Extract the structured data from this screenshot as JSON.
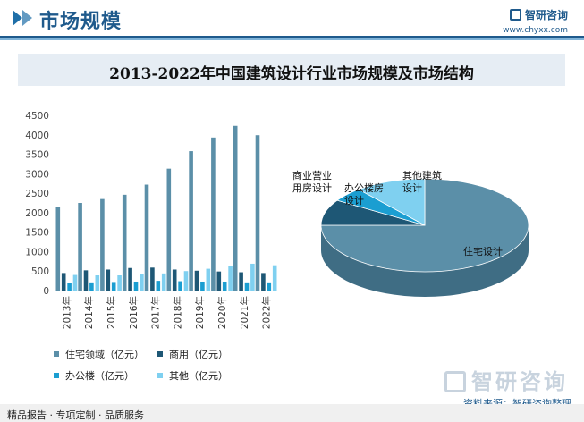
{
  "header": {
    "title": "市场规模",
    "brand": "智研咨询",
    "site": "www.chyxx.com"
  },
  "chart_title": "2013-2022年中国建筑设计行业市场规模及市场结构",
  "footer": {
    "left": "精品报告 · 专项定制 · 品质服务",
    "source": "资料来源：智研咨询整理",
    "logo": "智研咨询"
  },
  "chart_data": [
    {
      "type": "bar",
      "title": "",
      "categories": [
        "2013年",
        "2014年",
        "2015年",
        "2016年",
        "2017年",
        "2018年",
        "2019年",
        "2020年",
        "2021年",
        "2022年"
      ],
      "ylim": [
        0,
        4500
      ],
      "yticks": [
        0,
        500,
        1000,
        1500,
        2000,
        2500,
        3000,
        3500,
        4000,
        4500
      ],
      "legend_position": "bottom-left",
      "grid": false,
      "series": [
        {
          "name": "住宅领域（亿元）",
          "color": "#5b8fa8",
          "values": [
            2150,
            2250,
            2350,
            2460,
            2720,
            3130,
            3580,
            3930,
            4230,
            3990
          ]
        },
        {
          "name": "商用（亿元）",
          "color": "#1e5775",
          "values": [
            450,
            520,
            540,
            580,
            590,
            540,
            510,
            490,
            470,
            450
          ]
        },
        {
          "name": "办公楼（亿元）",
          "color": "#1b9ed1",
          "values": [
            190,
            210,
            220,
            230,
            250,
            240,
            230,
            230,
            210,
            210
          ]
        },
        {
          "name": "其他（亿元）",
          "color": "#7fd0f0",
          "values": [
            400,
            390,
            390,
            420,
            440,
            500,
            560,
            640,
            690,
            650
          ]
        }
      ]
    },
    {
      "type": "pie",
      "title": "",
      "slices": [
        {
          "label": "住宅设计",
          "value": 75,
          "color": "#5b8fa8",
          "side": "#3f6d84"
        },
        {
          "label": "商业营业用房设计",
          "value": 9,
          "color": "#1e5775",
          "side": "#143f56"
        },
        {
          "label": "办公楼房设计",
          "value": 5,
          "color": "#1b9ed1",
          "side": "#157aa2"
        },
        {
          "label": "其他建筑设计",
          "value": 11,
          "color": "#7fd0f0",
          "side": "#5aaed0"
        }
      ]
    }
  ]
}
